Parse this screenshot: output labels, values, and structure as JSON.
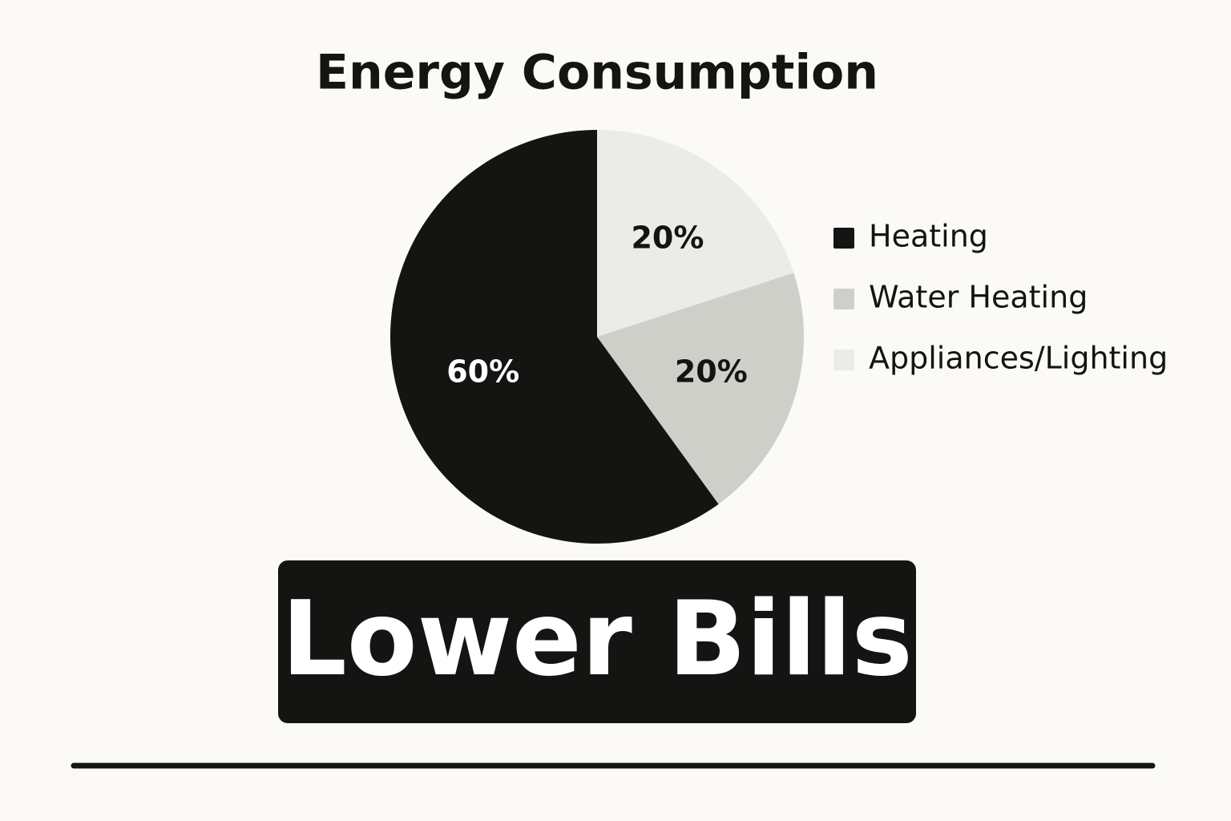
{
  "chart_data": {
    "type": "pie",
    "title": "Energy Consumption",
    "series": [
      {
        "name": "Heating",
        "color": "#141412",
        "values": [
          60
        ],
        "value_labels": [
          "60%"
        ]
      },
      {
        "name": "Water Heating",
        "color": "#cfcfca",
        "values": [
          20
        ],
        "value_labels": [
          "20%"
        ]
      },
      {
        "name": "Appliances/Lighting",
        "color": "#ebebe7",
        "values": [
          20
        ],
        "value_labels": [
          "20%"
        ]
      }
    ],
    "legend": "right"
  },
  "banner": "Lower Bills"
}
